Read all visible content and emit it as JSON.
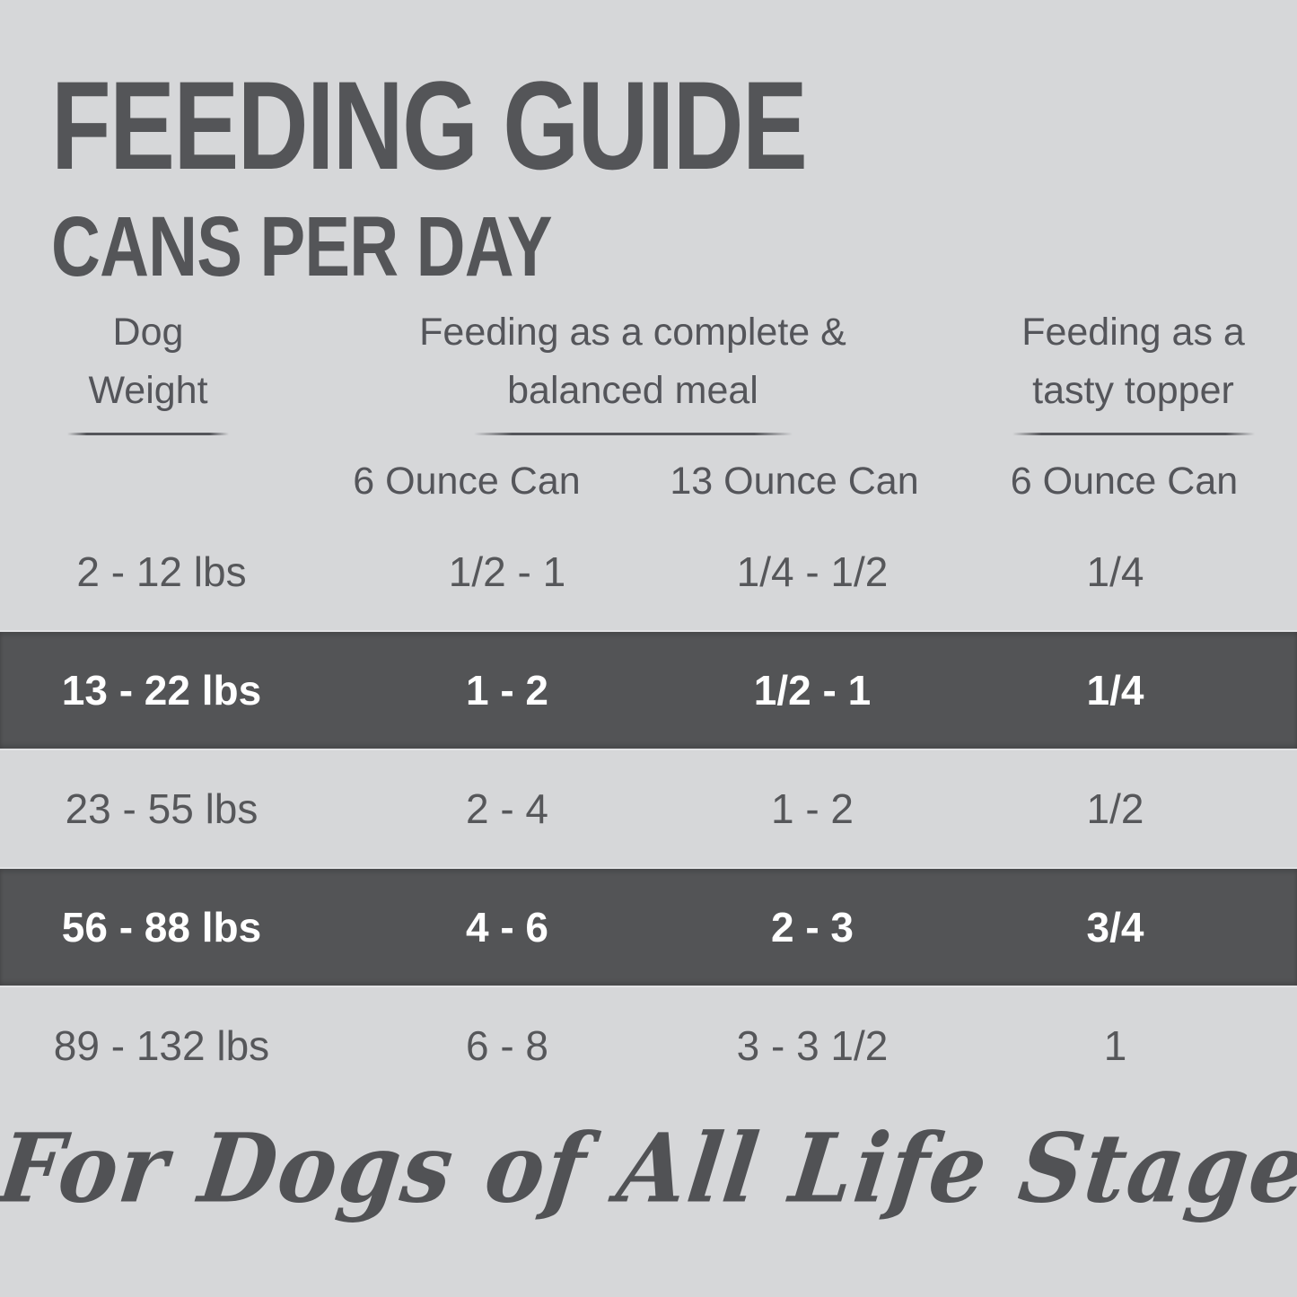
{
  "title": "FEEDING GUIDE",
  "subtitle": "CANS PER DAY",
  "table": {
    "group_headers": [
      {
        "name": "dog-weight",
        "lines": [
          "Dog",
          "Weight"
        ]
      },
      {
        "name": "complete-meal",
        "lines": [
          "Feeding as a complete &",
          "balanced meal"
        ]
      },
      {
        "name": "tasty-topper",
        "lines": [
          "Feeding as a",
          "tasty topper"
        ]
      }
    ],
    "sub_headers": [
      "6 Ounce Can",
      "13 Ounce Can",
      "6 Ounce Can"
    ],
    "rows": [
      {
        "weight": "2 - 12 lbs",
        "meal_6oz": "1/2 - 1",
        "meal_13oz": "1/4 - 1/2",
        "topper_6oz": "1/4",
        "highlight": false
      },
      {
        "weight": "13 - 22 lbs",
        "meal_6oz": "1 - 2",
        "meal_13oz": "1/2 - 1",
        "topper_6oz": "1/4",
        "highlight": true
      },
      {
        "weight": "23 - 55 lbs",
        "meal_6oz": "2 - 4",
        "meal_13oz": "1 - 2",
        "topper_6oz": "1/2",
        "highlight": false
      },
      {
        "weight": "56 - 88 lbs",
        "meal_6oz": "4 - 6",
        "meal_13oz": "2 - 3",
        "topper_6oz": "3/4",
        "highlight": true
      },
      {
        "weight": "89 - 132 lbs",
        "meal_6oz": "6 - 8",
        "meal_13oz": "3 - 3 1/2",
        "topper_6oz": "1",
        "highlight": false
      }
    ]
  },
  "footer": {
    "tagline": "For Dogs of All Life Stages"
  },
  "colors": {
    "background": "#d6d7d9",
    "text_dark": "#56575a",
    "highlight_row_bg": "#535456",
    "highlight_row_text": "#ffffff"
  }
}
